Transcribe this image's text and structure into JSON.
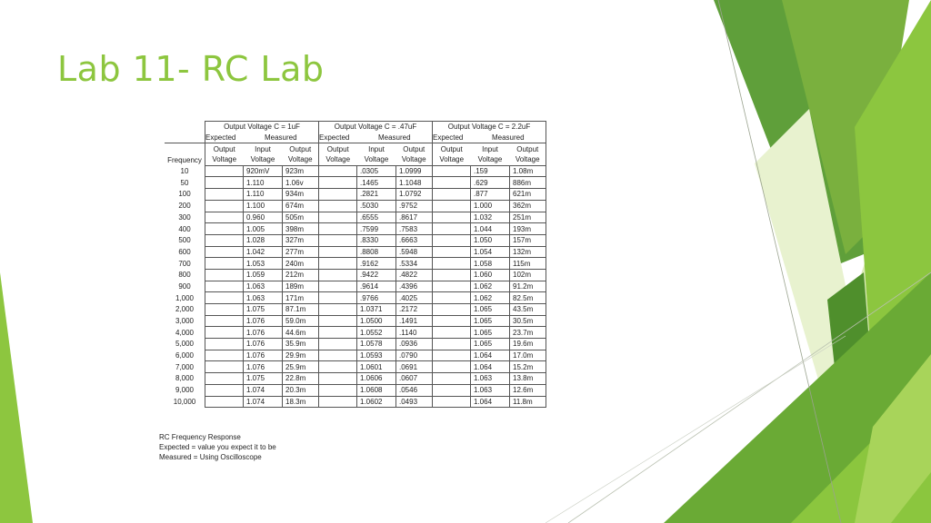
{
  "slide": {
    "title": "Lab 11- RC Lab"
  },
  "table": {
    "groups": [
      "Output Voltage C = 1uF",
      "Output Voltage C = .47uF",
      "Output Voltage C = 2.2uF"
    ],
    "sub": {
      "expected": "Expected",
      "measured": "Measured"
    },
    "col_top": {
      "output": "Output",
      "input": "Input"
    },
    "col_bottom": "Voltage",
    "freq_label": "Frequency",
    "rows": [
      [
        "10",
        "920mV",
        "923m",
        ".0305",
        "1.0999",
        ".159",
        "1.08m"
      ],
      [
        "50",
        "1.110",
        "1.06v",
        ".1465",
        "1.1048",
        ".629",
        "886m"
      ],
      [
        "100",
        "1.110",
        "934m",
        ".2821",
        "1.0792",
        ".877",
        "621m"
      ],
      [
        "200",
        "1.100",
        "674m",
        ".5030",
        ".9752",
        "1.000",
        "362m"
      ],
      [
        "300",
        "0.960",
        "505m",
        ".6555",
        ".8617",
        "1.032",
        "251m"
      ],
      [
        "400",
        "1.005",
        "398m",
        ".7599",
        ".7583",
        "1.044",
        "193m"
      ],
      [
        "500",
        "1.028",
        "327m",
        ".8330",
        ".6663",
        "1.050",
        "157m"
      ],
      [
        "600",
        "1.042",
        "277m",
        ".8808",
        ".5948",
        "1.054",
        "132m"
      ],
      [
        "700",
        "1.053",
        "240m",
        ".9162",
        ".5334",
        "1.058",
        "115m"
      ],
      [
        "800",
        "1.059",
        "212m",
        ".9422",
        ".4822",
        "1.060",
        "102m"
      ],
      [
        "900",
        "1.063",
        "189m",
        ".9614",
        ".4396",
        "1.062",
        "91.2m"
      ],
      [
        "1,000",
        "1.063",
        "171m",
        ".9766",
        ".4025",
        "1.062",
        "82.5m"
      ],
      [
        "2,000",
        "1.075",
        "87.1m",
        "1.0371",
        ".2172",
        "1.065",
        "43.5m"
      ],
      [
        "3,000",
        "1.076",
        "59.0m",
        "1.0500",
        ".1491",
        "1.065",
        "30.5m"
      ],
      [
        "4,000",
        "1.076",
        "44.6m",
        "1.0552",
        ".1140",
        "1.065",
        "23.7m"
      ],
      [
        "5,000",
        "1.076",
        "35.9m",
        "1.0578",
        ".0936",
        "1.065",
        "19.6m"
      ],
      [
        "6,000",
        "1.076",
        "29.9m",
        "1.0593",
        ".0790",
        "1.064",
        "17.0m"
      ],
      [
        "7,000",
        "1.076",
        "25.9m",
        "1.0601",
        ".0691",
        "1.064",
        "15.2m"
      ],
      [
        "8,000",
        "1.075",
        "22.8m",
        "1.0606",
        ".0607",
        "1.063",
        "13.8m"
      ],
      [
        "9,000",
        "1.074",
        "20.3m",
        "1.0608",
        ".0546",
        "1.063",
        "12.6m"
      ],
      [
        "10,000",
        "1.074",
        "18.3m",
        "1.0602",
        ".0493",
        "1.064",
        "11.8m"
      ]
    ]
  },
  "notes": [
    "RC Frequency Response",
    "Expected = value you expect it to be",
    "Measured = Using Oscilloscope"
  ],
  "colors": {
    "title": "#8dc63f",
    "accent_dark": "#4a8f2a",
    "accent_light": "#cfe5a0"
  }
}
